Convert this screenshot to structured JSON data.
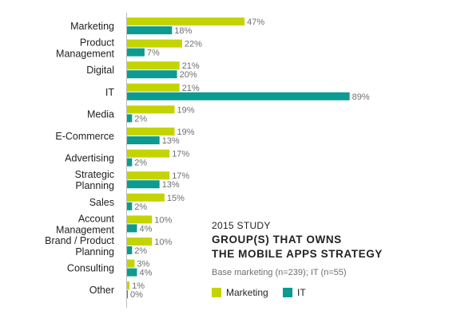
{
  "colors": {
    "marketing": "#c3d400",
    "it": "#0c9b91",
    "axis": "#bbbbbb"
  },
  "chart_data": {
    "type": "bar",
    "orientation": "horizontal",
    "categories": [
      [
        "Marketing"
      ],
      [
        "Product",
        "Management"
      ],
      [
        "Digital"
      ],
      [
        "IT"
      ],
      [
        "Media"
      ],
      [
        "E-Commerce"
      ],
      [
        "Advertising"
      ],
      [
        "Strategic",
        "Planning"
      ],
      [
        "Sales"
      ],
      [
        "Account",
        "Management"
      ],
      [
        "Brand / Product",
        "Planning"
      ],
      [
        "Consulting"
      ],
      [
        "Other"
      ]
    ],
    "series": [
      {
        "name": "Marketing",
        "values": [
          47,
          22,
          21,
          21,
          19,
          19,
          17,
          17,
          15,
          10,
          10,
          3,
          1
        ]
      },
      {
        "name": "IT",
        "values": [
          18,
          7,
          20,
          89,
          2,
          13,
          2,
          13,
          2,
          4,
          2,
          4,
          0
        ]
      }
    ],
    "value_suffix": "%",
    "xlim": [
      0,
      100
    ],
    "study": "2015 STUDY",
    "title_lines": [
      "GROUP(S) THAT OWNS",
      "THE MOBILE APPS STRATEGY"
    ],
    "base_note": "Base marketing (n=239); IT (n=55)",
    "legend_position": "bottom-right"
  }
}
